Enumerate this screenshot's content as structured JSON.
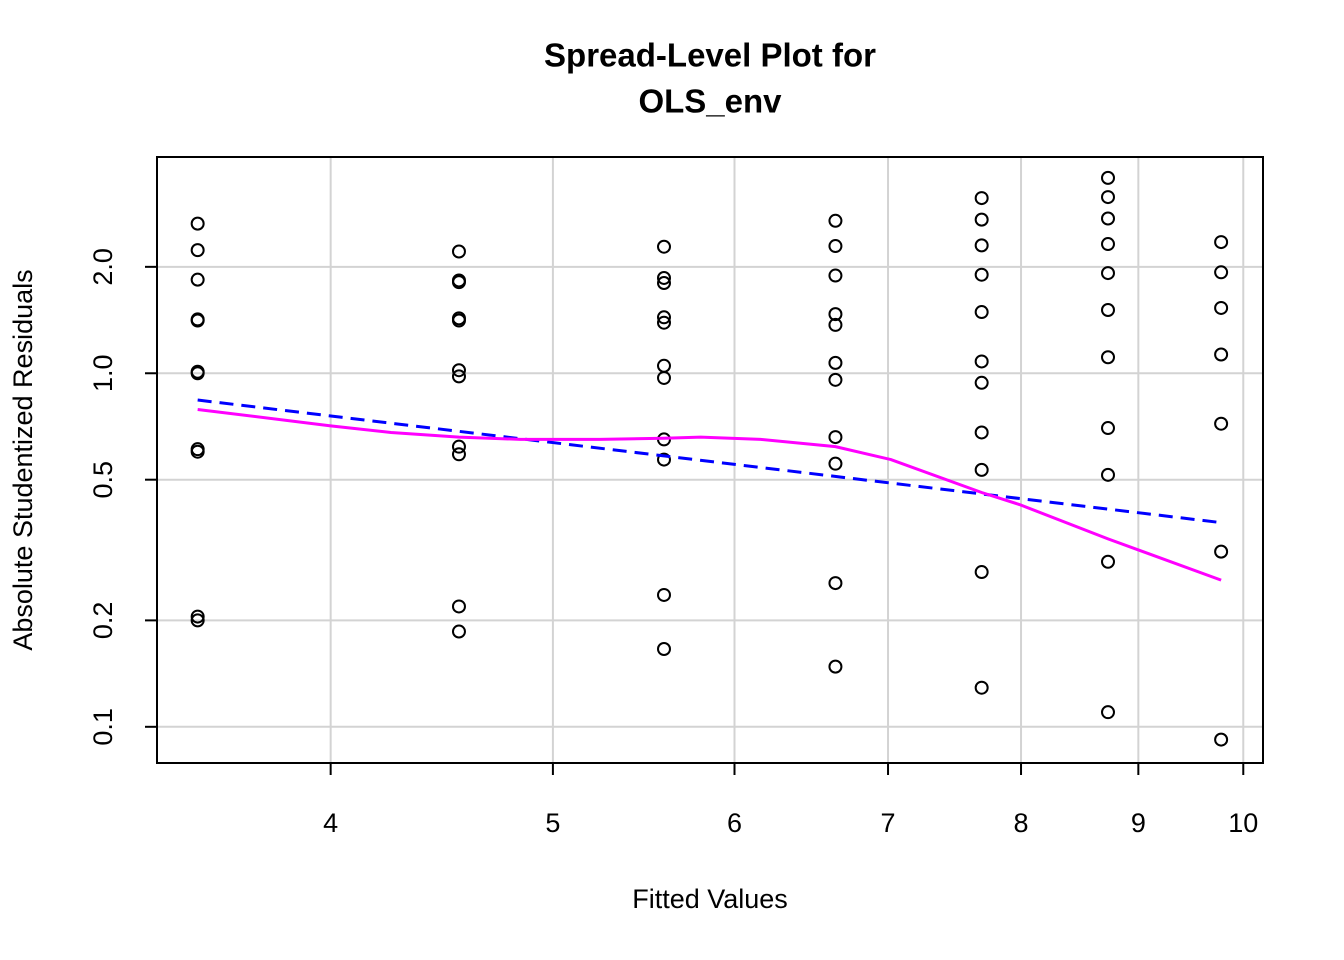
{
  "chart_data": {
    "type": "scatter",
    "title": [
      "Spread-Level Plot for",
      "OLS_env"
    ],
    "x_label": "Fitted Values",
    "y_label": "Absolute Studentized Residuals",
    "xlog": true,
    "ylog": true,
    "grid": true,
    "xlim": [
      3.36,
      10.2
    ],
    "ylim": [
      0.079,
      4.09
    ],
    "xticks": [
      4,
      5,
      6,
      7,
      8,
      9,
      10
    ],
    "yticks": [
      0.1,
      0.2,
      0.5,
      {
        "value": 1,
        "label": "1.0"
      },
      {
        "value": 2,
        "label": "2.0"
      }
    ],
    "series": [
      {
        "type": "scatter",
        "color": "#000000",
        "x": [
          3.5,
          3.5,
          3.5,
          3.5,
          3.5,
          3.5,
          3.5,
          3.5,
          3.5,
          3.5,
          3.5,
          4.55,
          4.55,
          4.55,
          4.55,
          4.55,
          4.55,
          4.55,
          4.55,
          4.55,
          4.55,
          4.55,
          5.59,
          5.59,
          5.59,
          5.59,
          5.59,
          5.59,
          5.59,
          5.59,
          5.59,
          5.59,
          5.59,
          6.64,
          6.64,
          6.64,
          6.64,
          6.64,
          6.64,
          6.64,
          6.64,
          6.64,
          6.64,
          6.64,
          7.69,
          7.69,
          7.69,
          7.69,
          7.69,
          7.69,
          7.69,
          7.69,
          7.69,
          7.69,
          7.69,
          8.73,
          8.73,
          8.73,
          8.73,
          8.73,
          8.73,
          8.73,
          8.73,
          8.73,
          8.73,
          8.73,
          9.78,
          9.78,
          9.78,
          9.78,
          9.78,
          9.78,
          9.78
        ],
        "values": [
          2.65,
          2.23,
          1.84,
          1.42,
          1.41,
          1.01,
          1.0,
          0.61,
          0.6,
          0.205,
          0.2,
          2.21,
          1.83,
          1.81,
          1.43,
          1.41,
          1.02,
          0.98,
          0.62,
          0.59,
          0.219,
          0.186,
          2.28,
          1.86,
          1.8,
          1.44,
          1.39,
          1.05,
          0.97,
          0.65,
          0.57,
          0.236,
          0.166,
          2.7,
          2.29,
          1.89,
          1.47,
          1.37,
          1.07,
          0.958,
          0.66,
          0.555,
          0.255,
          0.148,
          3.13,
          2.72,
          2.3,
          1.9,
          1.49,
          1.08,
          0.94,
          0.68,
          0.533,
          0.274,
          0.129,
          3.57,
          3.15,
          2.74,
          2.32,
          1.92,
          1.51,
          1.11,
          0.7,
          0.516,
          0.293,
          0.11,
          2.35,
          1.93,
          1.53,
          1.13,
          0.72,
          0.313,
          0.092
        ]
      },
      {
        "type": "line",
        "color": "#0000ff",
        "dash": true,
        "x": [
          3.5,
          9.78
        ],
        "values": [
          0.84,
          0.378
        ]
      },
      {
        "type": "line",
        "color": "#ff00ff",
        "dash": false,
        "x": [
          3.5,
          4,
          4.25,
          4.55,
          4.84,
          5.24,
          5.59,
          5.8,
          6.16,
          6.64,
          7.02,
          7.69,
          7.99,
          8.73,
          9.78
        ],
        "values": [
          0.79,
          0.71,
          0.68,
          0.66,
          0.65,
          0.65,
          0.655,
          0.66,
          0.65,
          0.62,
          0.57,
          0.46,
          0.425,
          0.34,
          0.26
        ]
      }
    ]
  }
}
